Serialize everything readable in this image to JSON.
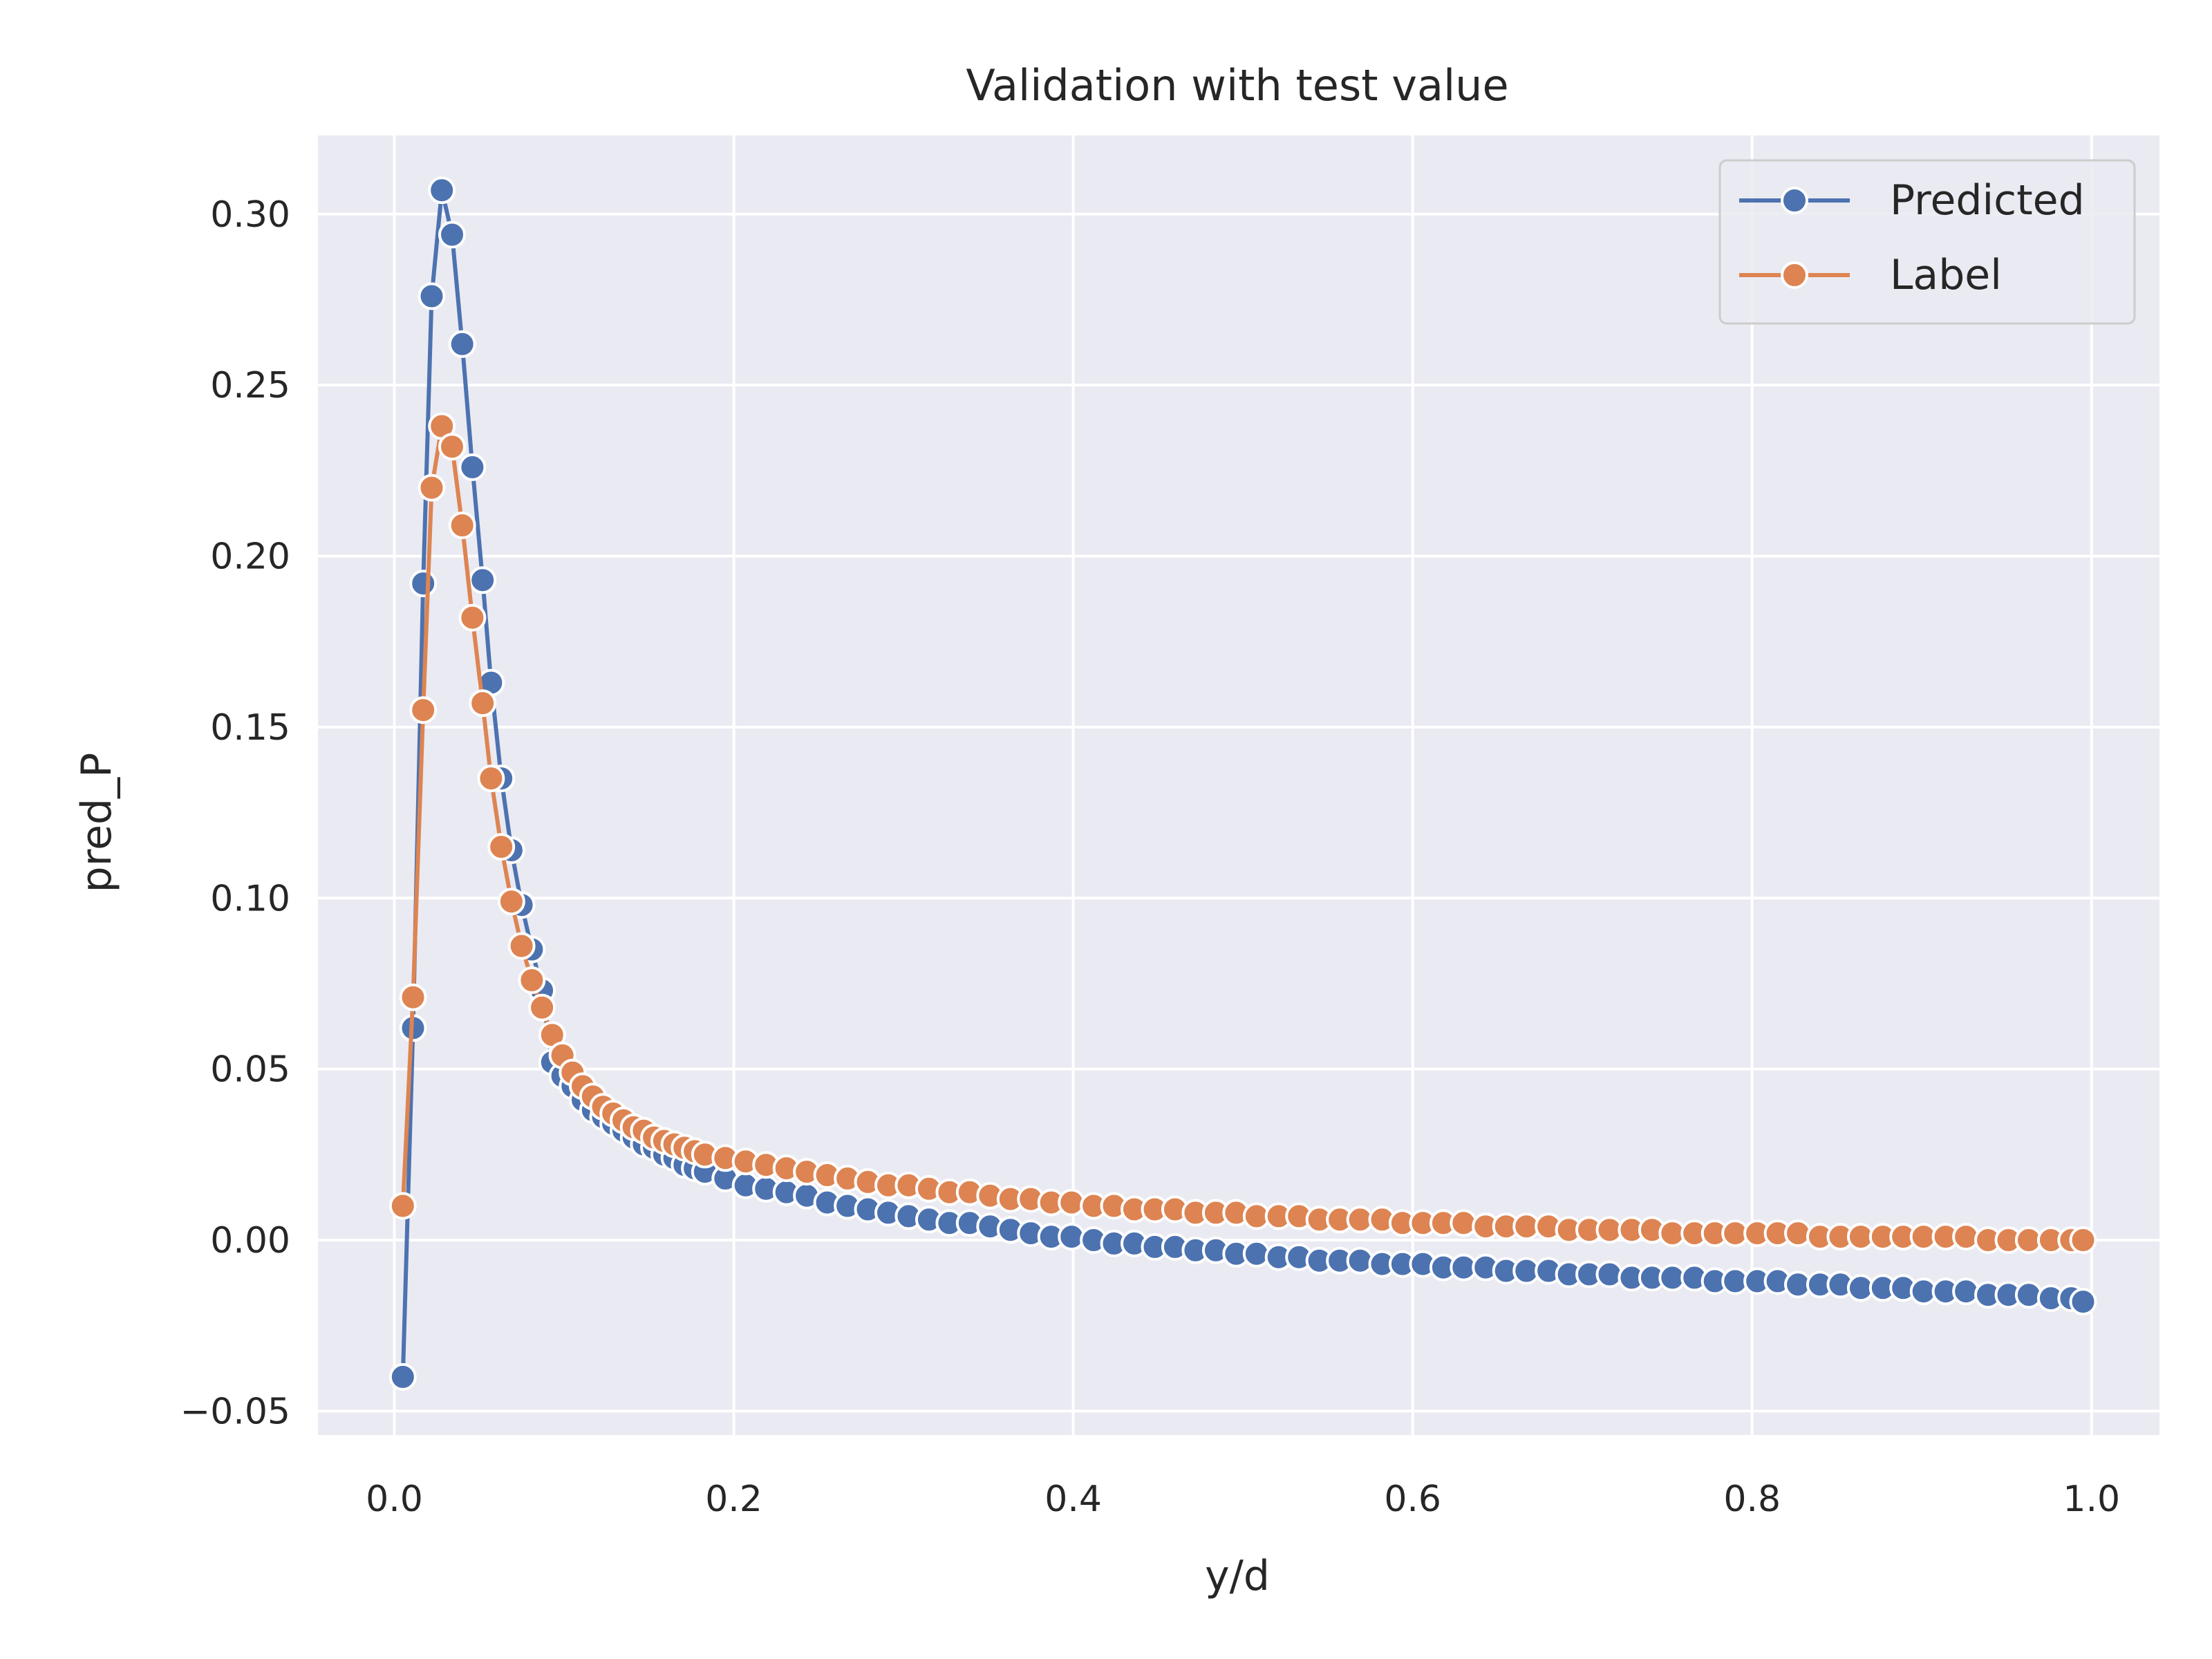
{
  "chart_data": {
    "type": "line",
    "title": "Validation with test value",
    "xlabel": "y/d",
    "ylabel": "pred_P",
    "xlim": [
      -0.045,
      1.04
    ],
    "ylim": [
      -0.057,
      0.323
    ],
    "xticks": [
      0.0,
      0.2,
      0.4,
      0.6,
      0.8,
      1.0
    ],
    "xtick_labels": [
      "0.0",
      "0.2",
      "0.4",
      "0.6",
      "0.8",
      "1.0"
    ],
    "yticks": [
      -0.05,
      0.0,
      0.05,
      0.1,
      0.15,
      0.2,
      0.25,
      0.3
    ],
    "ytick_labels": [
      "−0.05",
      "0.00",
      "0.05",
      "0.10",
      "0.15",
      "0.20",
      "0.25",
      "0.30"
    ],
    "grid": true,
    "legend_position": "top-right",
    "background": "#eaeaf2",
    "x": [
      0.005,
      0.011,
      0.017,
      0.022,
      0.028,
      0.034,
      0.04,
      0.046,
      0.052,
      0.057,
      0.063,
      0.069,
      0.075,
      0.081,
      0.087,
      0.093,
      0.099,
      0.105,
      0.111,
      0.117,
      0.123,
      0.129,
      0.135,
      0.141,
      0.147,
      0.153,
      0.159,
      0.165,
      0.171,
      0.177,
      0.183,
      0.195,
      0.207,
      0.219,
      0.231,
      0.243,
      0.255,
      0.267,
      0.279,
      0.291,
      0.303,
      0.315,
      0.327,
      0.339,
      0.351,
      0.363,
      0.375,
      0.387,
      0.399,
      0.412,
      0.424,
      0.436,
      0.448,
      0.46,
      0.472,
      0.484,
      0.496,
      0.508,
      0.521,
      0.533,
      0.545,
      0.557,
      0.569,
      0.582,
      0.594,
      0.606,
      0.618,
      0.63,
      0.643,
      0.655,
      0.667,
      0.68,
      0.692,
      0.704,
      0.716,
      0.729,
      0.741,
      0.753,
      0.766,
      0.778,
      0.79,
      0.803,
      0.815,
      0.827,
      0.84,
      0.852,
      0.864,
      0.877,
      0.889,
      0.901,
      0.914,
      0.926,
      0.939,
      0.951,
      0.963,
      0.976,
      0.988,
      0.995
    ],
    "series": [
      {
        "name": "Predicted",
        "color": "#4c72b0",
        "values": [
          -0.04,
          0.062,
          0.192,
          0.276,
          0.307,
          0.294,
          0.262,
          0.226,
          0.193,
          0.163,
          0.135,
          0.114,
          0.098,
          0.085,
          0.073,
          0.052,
          0.048,
          0.045,
          0.041,
          0.038,
          0.036,
          0.034,
          0.032,
          0.03,
          0.028,
          0.027,
          0.025,
          0.024,
          0.022,
          0.021,
          0.02,
          0.018,
          0.016,
          0.015,
          0.014,
          0.013,
          0.011,
          0.01,
          0.009,
          0.008,
          0.007,
          0.006,
          0.005,
          0.005,
          0.004,
          0.003,
          0.002,
          0.001,
          0.001,
          0.0,
          -0.001,
          -0.001,
          -0.002,
          -0.002,
          -0.003,
          -0.003,
          -0.004,
          -0.004,
          -0.005,
          -0.005,
          -0.006,
          -0.006,
          -0.006,
          -0.007,
          -0.007,
          -0.007,
          -0.008,
          -0.008,
          -0.008,
          -0.009,
          -0.009,
          -0.009,
          -0.01,
          -0.01,
          -0.01,
          -0.011,
          -0.011,
          -0.011,
          -0.011,
          -0.012,
          -0.012,
          -0.012,
          -0.012,
          -0.013,
          -0.013,
          -0.013,
          -0.014,
          -0.014,
          -0.014,
          -0.015,
          -0.015,
          -0.015,
          -0.016,
          -0.016,
          -0.016,
          -0.017,
          -0.017,
          -0.018
        ]
      },
      {
        "name": "Label",
        "color": "#dd8452",
        "values": [
          0.01,
          0.071,
          0.155,
          0.22,
          0.238,
          0.232,
          0.209,
          0.182,
          0.157,
          0.135,
          0.115,
          0.099,
          0.086,
          0.076,
          0.068,
          0.06,
          0.054,
          0.049,
          0.045,
          0.042,
          0.039,
          0.037,
          0.035,
          0.033,
          0.032,
          0.03,
          0.029,
          0.028,
          0.027,
          0.026,
          0.025,
          0.024,
          0.023,
          0.022,
          0.021,
          0.02,
          0.019,
          0.018,
          0.017,
          0.016,
          0.016,
          0.015,
          0.014,
          0.014,
          0.013,
          0.012,
          0.012,
          0.011,
          0.011,
          0.01,
          0.01,
          0.009,
          0.009,
          0.009,
          0.008,
          0.008,
          0.008,
          0.007,
          0.007,
          0.007,
          0.006,
          0.006,
          0.006,
          0.006,
          0.005,
          0.005,
          0.005,
          0.005,
          0.004,
          0.004,
          0.004,
          0.004,
          0.003,
          0.003,
          0.003,
          0.003,
          0.003,
          0.002,
          0.002,
          0.002,
          0.002,
          0.002,
          0.002,
          0.002,
          0.001,
          0.001,
          0.001,
          0.001,
          0.001,
          0.001,
          0.001,
          0.001,
          0.0,
          0.0,
          0.0,
          0.0,
          0.0,
          0.0
        ]
      }
    ]
  }
}
